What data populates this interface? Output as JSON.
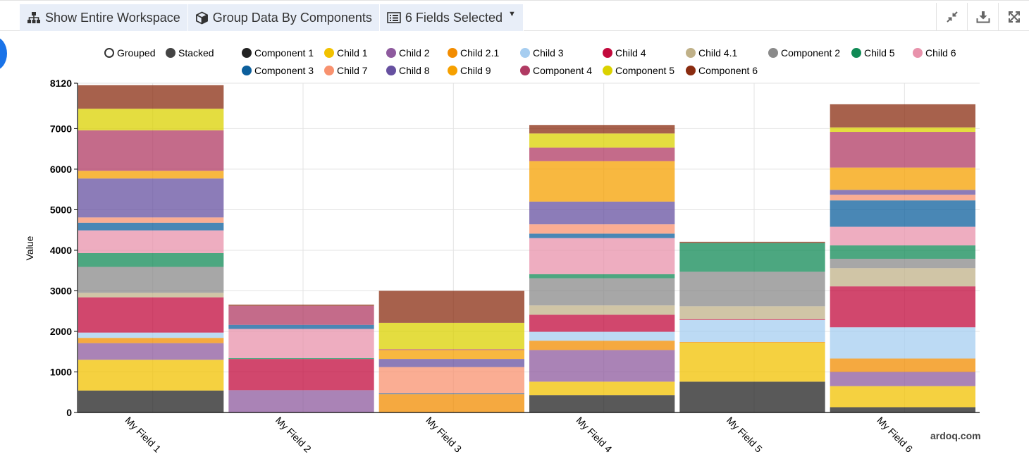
{
  "toolbar": {
    "show_workspace": "Show Entire Workspace",
    "group_data": "Group Data By Components",
    "fields_selected": "6 Fields Selected"
  },
  "watermark": "ardoq.com",
  "mode_toggle": {
    "grouped": "Grouped",
    "stacked": "Stacked",
    "selected": "stacked"
  },
  "chart_data": {
    "type": "bar",
    "stacked": true,
    "title": "",
    "xlabel": "",
    "ylabel": "Value",
    "ylim": [
      0,
      8120
    ],
    "yticks": [
      0,
      1000,
      2000,
      3000,
      4000,
      5000,
      6000,
      7000,
      8120
    ],
    "ytick_labels": [
      "0",
      "1000",
      "2000",
      "3000",
      "4000",
      "5000",
      "6000",
      "7000",
      "8120"
    ],
    "grid": true,
    "legend_position": "top",
    "categories": [
      "My Field 1",
      "My Field 2",
      "My Field 3",
      "My Field 4",
      "My Field 5",
      "My Field 6"
    ],
    "series": [
      {
        "name": "Component 1",
        "color": "#222222",
        "values": [
          540,
          0,
          0,
          430,
          760,
          130
        ]
      },
      {
        "name": "Child 1",
        "color": "#f2c200",
        "values": [
          760,
          0,
          0,
          330,
          960,
          520
        ]
      },
      {
        "name": "Child 2",
        "color": "#8e5a9e",
        "values": [
          410,
          550,
          0,
          780,
          0,
          350
        ]
      },
      {
        "name": "Child 2.1",
        "color": "#f28c00",
        "values": [
          130,
          0,
          450,
          230,
          20,
          330
        ]
      },
      {
        "name": "Child 3",
        "color": "#a6cdf0",
        "values": [
          130,
          0,
          0,
          220,
          540,
          770
        ]
      },
      {
        "name": "Child 4",
        "color": "#c2093c",
        "values": [
          870,
          770,
          0,
          420,
          20,
          1010
        ]
      },
      {
        "name": "Child 4.1",
        "color": "#c0b188",
        "values": [
          110,
          0,
          0,
          230,
          320,
          450
        ]
      },
      {
        "name": "Component 2",
        "color": "#8a8a8a",
        "values": [
          640,
          0,
          0,
          670,
          850,
          230
        ]
      },
      {
        "name": "Child 5",
        "color": "#108a55",
        "values": [
          340,
          20,
          0,
          100,
          710,
          330
        ]
      },
      {
        "name": "Child 6",
        "color": "#e892ab",
        "values": [
          560,
          720,
          0,
          890,
          0,
          460
        ]
      },
      {
        "name": "Component 3",
        "color": "#0c5f9c",
        "values": [
          190,
          100,
          20,
          110,
          0,
          650
        ]
      },
      {
        "name": "Child 7",
        "color": "#f8926f",
        "values": [
          130,
          0,
          650,
          230,
          0,
          140
        ]
      },
      {
        "name": "Child 8",
        "color": "#6650a0",
        "values": [
          960,
          0,
          200,
          560,
          0,
          120
        ]
      },
      {
        "name": "Child 9",
        "color": "#f6a000",
        "values": [
          190,
          0,
          220,
          1000,
          0,
          550
        ]
      },
      {
        "name": "Component 4",
        "color": "#b03a63",
        "values": [
          1000,
          470,
          20,
          330,
          0,
          880
        ]
      },
      {
        "name": "Component 5",
        "color": "#dbd200",
        "values": [
          530,
          0,
          650,
          350,
          0,
          110
        ]
      },
      {
        "name": "Component 6",
        "color": "#8a2c10",
        "values": [
          580,
          30,
          790,
          210,
          30,
          570
        ]
      }
    ]
  }
}
